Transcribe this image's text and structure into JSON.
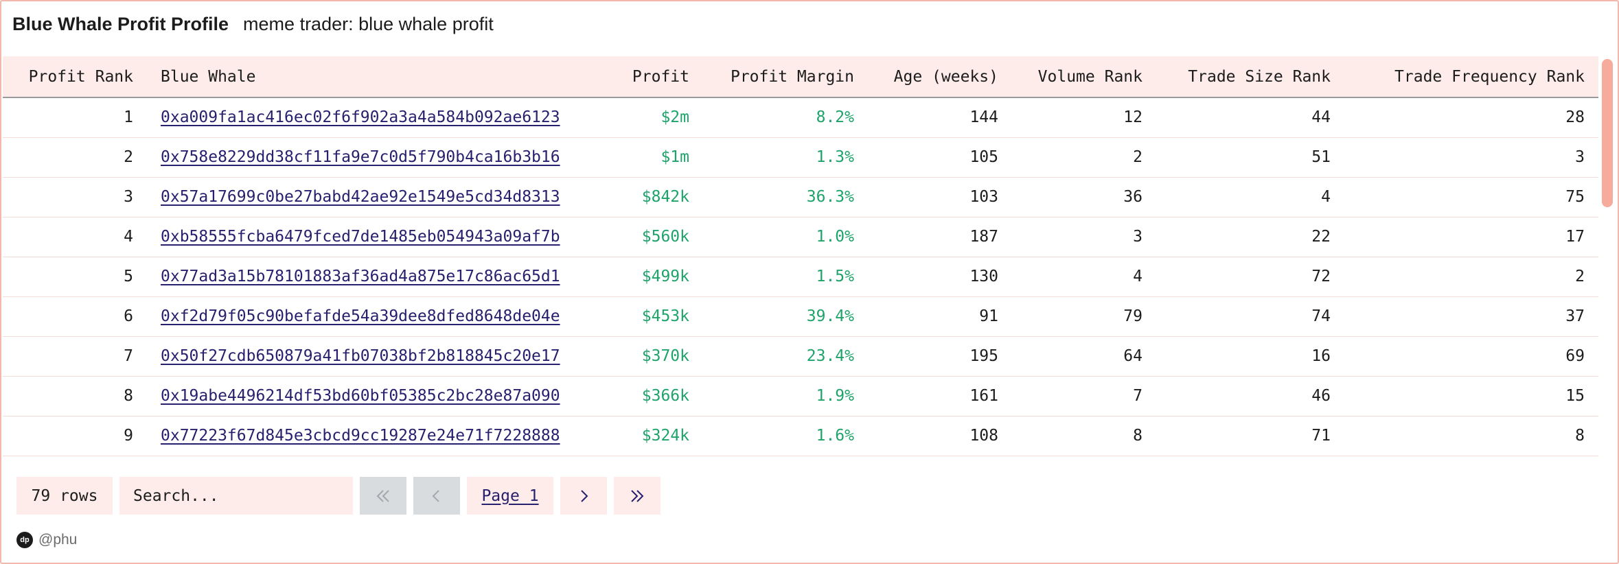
{
  "header": {
    "title": "Blue Whale Profit Profile",
    "subtitle": "meme trader: blue whale profit"
  },
  "table": {
    "columns": [
      "Profit Rank",
      "Blue Whale",
      "Profit",
      "Profit Margin",
      "Age (weeks)",
      "Volume Rank",
      "Trade Size Rank",
      "Trade Frequency Rank"
    ],
    "rows": [
      [
        "1",
        "0xa009fa1ac416ec02f6f902a3a4a584b092ae6123",
        "$2m",
        "8.2%",
        "144",
        "12",
        "44",
        "28"
      ],
      [
        "2",
        "0x758e8229dd38cf11fa9e7c0d5f790b4ca16b3b16",
        "$1m",
        "1.3%",
        "105",
        "2",
        "51",
        "3"
      ],
      [
        "3",
        "0x57a17699c0be27babd42ae92e1549e5cd34d8313",
        "$842k",
        "36.3%",
        "103",
        "36",
        "4",
        "75"
      ],
      [
        "4",
        "0xb58555fcba6479fced7de1485eb054943a09af7b",
        "$560k",
        "1.0%",
        "187",
        "3",
        "22",
        "17"
      ],
      [
        "5",
        "0x77ad3a15b78101883af36ad4a875e17c86ac65d1",
        "$499k",
        "1.5%",
        "130",
        "4",
        "72",
        "2"
      ],
      [
        "6",
        "0xf2d79f05c90befafde54a39dee8dfed8648de04e",
        "$453k",
        "39.4%",
        "91",
        "79",
        "74",
        "37"
      ],
      [
        "7",
        "0x50f27cdb650879a41fb07038bf2b818845c20e17",
        "$370k",
        "23.4%",
        "195",
        "64",
        "16",
        "69"
      ],
      [
        "8",
        "0x19abe4496214df53bd60bf05385c2bc28e87a090",
        "$366k",
        "1.9%",
        "161",
        "7",
        "46",
        "15"
      ],
      [
        "9",
        "0x77223f67d845e3cbcd9cc19287e24e71f7228888",
        "$324k",
        "1.6%",
        "108",
        "8",
        "71",
        "8"
      ]
    ]
  },
  "controls": {
    "row_count": "79 rows",
    "search_placeholder": "Search...",
    "first_icon": "double-chevron-left-icon",
    "prev_icon": "chevron-left-icon",
    "page_label": "Page 1",
    "next_icon": "chevron-right-icon",
    "last_icon": "double-chevron-right-icon"
  },
  "footer": {
    "logo_text": "dp",
    "author": "@phu"
  },
  "colors": {
    "accent_bg": "#fdecea",
    "border": "#f3b8ad",
    "positive": "#1ea36a",
    "link": "#27206e",
    "disabled": "#d8dcdf"
  }
}
